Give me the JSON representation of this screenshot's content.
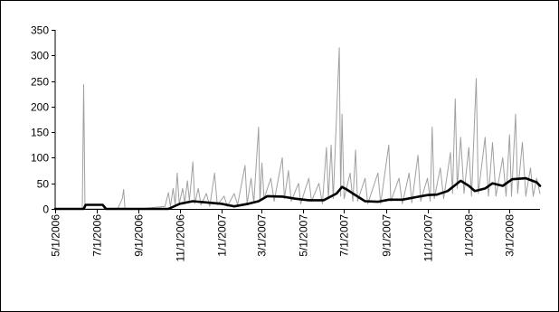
{
  "chart_data": {
    "type": "line",
    "title": "",
    "xlabel": "",
    "ylabel": "",
    "ylim": [
      0,
      350
    ],
    "yticks": [
      0,
      50,
      100,
      150,
      200,
      250,
      300,
      350
    ],
    "xticks": [
      "5/1/2006",
      "7/1/2006",
      "9/1/2006",
      "11/1/2006",
      "1/1/2007",
      "3/1/2007",
      "5/1/2007",
      "7/1/2007",
      "9/1/2007",
      "11/1/2007",
      "1/1/2008",
      "3/1/2008"
    ],
    "xrange": [
      "5/1/2006",
      "4/15/2008"
    ],
    "grid": false,
    "legend": "none",
    "series": [
      {
        "style": "thin gray spikes",
        "color": "#a0a0a0",
        "points": [
          [
            "5/1/2006",
            0
          ],
          [
            "6/10/2006",
            0
          ],
          [
            "6/12/2006",
            243
          ],
          [
            "6/14/2006",
            0
          ],
          [
            "8/1/2006",
            0
          ],
          [
            "8/8/2006",
            20
          ],
          [
            "8/10/2006",
            38
          ],
          [
            "8/12/2006",
            0
          ],
          [
            "9/1/2006",
            0
          ],
          [
            "10/10/2006",
            5
          ],
          [
            "10/15/2006",
            32
          ],
          [
            "10/18/2006",
            5
          ],
          [
            "10/22/2006",
            40
          ],
          [
            "10/25/2006",
            8
          ],
          [
            "10/28/2006",
            70
          ],
          [
            "10/31/2006",
            10
          ],
          [
            "11/5/2006",
            40
          ],
          [
            "11/8/2006",
            12
          ],
          [
            "11/12/2006",
            55
          ],
          [
            "11/15/2006",
            15
          ],
          [
            "11/20/2006",
            92
          ],
          [
            "11/23/2006",
            10
          ],
          [
            "11/28/2006",
            40
          ],
          [
            "12/2/2006",
            8
          ],
          [
            "12/10/2006",
            30
          ],
          [
            "12/15/2006",
            5
          ],
          [
            "12/22/2006",
            70
          ],
          [
            "12/26/2006",
            8
          ],
          [
            "1/5/2007",
            25
          ],
          [
            "1/10/2007",
            5
          ],
          [
            "1/20/2007",
            30
          ],
          [
            "1/25/2007",
            8
          ],
          [
            "2/5/2007",
            85
          ],
          [
            "2/8/2007",
            10
          ],
          [
            "2/14/2007",
            60
          ],
          [
            "2/18/2007",
            12
          ],
          [
            "2/25/2007",
            160
          ],
          [
            "2/27/2007",
            15
          ],
          [
            "3/2/2007",
            90
          ],
          [
            "3/5/2007",
            20
          ],
          [
            "3/15/2007",
            60
          ],
          [
            "3/20/2007",
            15
          ],
          [
            "4/1/2007",
            100
          ],
          [
            "4/4/2007",
            20
          ],
          [
            "4/10/2007",
            75
          ],
          [
            "4/14/2007",
            15
          ],
          [
            "4/25/2007",
            50
          ],
          [
            "4/28/2007",
            10
          ],
          [
            "5/10/2007",
            60
          ],
          [
            "5/14/2007",
            15
          ],
          [
            "5/25/2007",
            50
          ],
          [
            "5/30/2007",
            10
          ],
          [
            "6/5/2007",
            120
          ],
          [
            "6/8/2007",
            20
          ],
          [
            "6/12/2007",
            125
          ],
          [
            "6/15/2007",
            20
          ],
          [
            "6/24/2007",
            315
          ],
          [
            "6/26/2007",
            25
          ],
          [
            "6/28/2007",
            185
          ],
          [
            "7/1/2007",
            20
          ],
          [
            "7/10/2007",
            70
          ],
          [
            "7/14/2007",
            15
          ],
          [
            "7/18/2007",
            115
          ],
          [
            "7/21/2007",
            15
          ],
          [
            "8/1/2007",
            60
          ],
          [
            "8/5/2007",
            10
          ],
          [
            "8/20/2007",
            70
          ],
          [
            "8/24/2007",
            10
          ],
          [
            "9/5/2007",
            125
          ],
          [
            "9/8/2007",
            15
          ],
          [
            "9/20/2007",
            60
          ],
          [
            "9/25/2007",
            10
          ],
          [
            "10/5/2007",
            70
          ],
          [
            "10/9/2007",
            12
          ],
          [
            "10/18/2007",
            105
          ],
          [
            "10/22/2007",
            15
          ],
          [
            "11/1/2007",
            60
          ],
          [
            "11/5/2007",
            15
          ],
          [
            "11/8/2007",
            160
          ],
          [
            "11/11/2007",
            20
          ],
          [
            "11/20/2007",
            80
          ],
          [
            "11/25/2007",
            20
          ],
          [
            "12/5/2007",
            110
          ],
          [
            "12/8/2007",
            30
          ],
          [
            "12/12/2007",
            215
          ],
          [
            "12/15/2007",
            40
          ],
          [
            "12/20/2007",
            140
          ],
          [
            "12/25/2007",
            30
          ],
          [
            "1/1/2008",
            120
          ],
          [
            "1/5/2008",
            25
          ],
          [
            "1/12/2008",
            255
          ],
          [
            "1/15/2008",
            30
          ],
          [
            "1/25/2008",
            140
          ],
          [
            "1/30/2008",
            25
          ],
          [
            "2/5/2008",
            130
          ],
          [
            "2/10/2008",
            25
          ],
          [
            "2/20/2008",
            100
          ],
          [
            "2/25/2008",
            25
          ],
          [
            "3/1/2008",
            145
          ],
          [
            "3/4/2008",
            25
          ],
          [
            "3/10/2008",
            185
          ],
          [
            "3/13/2008",
            30
          ],
          [
            "3/20/2008",
            130
          ],
          [
            "3/25/2008",
            25
          ],
          [
            "4/1/2008",
            80
          ],
          [
            "4/5/2008",
            25
          ],
          [
            "4/10/2008",
            60
          ],
          [
            "4/15/2008",
            30
          ]
        ]
      },
      {
        "style": "thick black moving average",
        "color": "#000000",
        "points": [
          [
            "5/1/2006",
            0
          ],
          [
            "6/12/2006",
            0
          ],
          [
            "6/15/2006",
            8
          ],
          [
            "7/10/2006",
            8
          ],
          [
            "7/15/2006",
            0
          ],
          [
            "10/15/2006",
            0
          ],
          [
            "11/1/2006",
            10
          ],
          [
            "11/20/2006",
            15
          ],
          [
            "12/15/2006",
            12
          ],
          [
            "1/1/2007",
            10
          ],
          [
            "1/20/2007",
            5
          ],
          [
            "2/10/2007",
            10
          ],
          [
            "2/25/2007",
            15
          ],
          [
            "3/10/2007",
            25
          ],
          [
            "4/1/2007",
            24
          ],
          [
            "4/20/2007",
            20
          ],
          [
            "5/10/2007",
            17
          ],
          [
            "6/1/2007",
            17
          ],
          [
            "6/20/2007",
            30
          ],
          [
            "6/28/2007",
            43
          ],
          [
            "7/5/2007",
            38
          ],
          [
            "7/20/2007",
            25
          ],
          [
            "8/1/2007",
            15
          ],
          [
            "8/20/2007",
            14
          ],
          [
            "9/5/2007",
            18
          ],
          [
            "9/25/2007",
            18
          ],
          [
            "10/15/2007",
            23
          ],
          [
            "11/1/2007",
            27
          ],
          [
            "11/15/2007",
            28
          ],
          [
            "12/1/2007",
            35
          ],
          [
            "12/20/2007",
            55
          ],
          [
            "1/1/2008",
            45
          ],
          [
            "1/10/2008",
            35
          ],
          [
            "1/25/2008",
            40
          ],
          [
            "2/5/2008",
            50
          ],
          [
            "2/20/2008",
            45
          ],
          [
            "3/5/2008",
            58
          ],
          [
            "3/25/2008",
            60
          ],
          [
            "4/10/2008",
            52
          ],
          [
            "4/15/2008",
            45
          ]
        ]
      }
    ]
  }
}
